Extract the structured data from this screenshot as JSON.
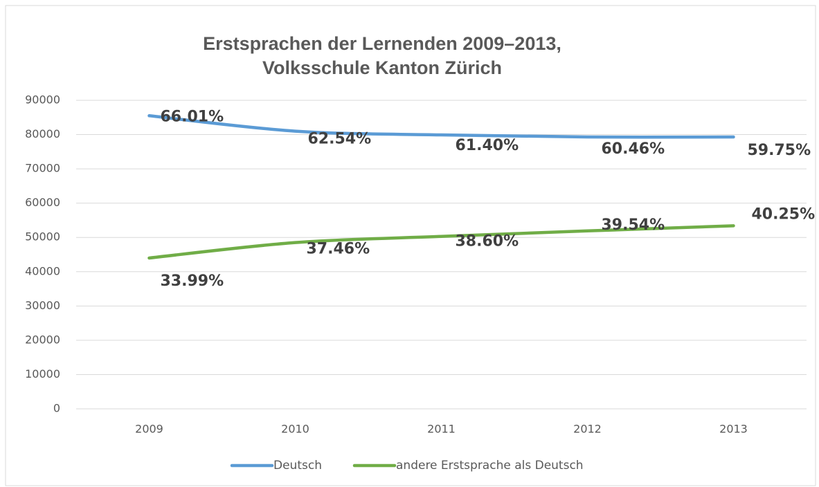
{
  "chart_data": {
    "type": "line",
    "title": [
      "Erstsprachen der Lernenden 2009–2013,",
      "Volksschule Kanton Zürich"
    ],
    "categories": [
      "2009",
      "2010",
      "2011",
      "2012",
      "2013"
    ],
    "series": [
      {
        "name": "Deutsch",
        "color": "#5b9bd5",
        "values": [
          85500,
          81000,
          79900,
          79300,
          79300
        ],
        "share_labels": [
          "66.01%",
          "62.54%",
          "61.40%",
          "60.46%",
          "59.75%"
        ]
      },
      {
        "name": "andere Erstsprache als Deutsch",
        "color": "#70ad47",
        "values": [
          44000,
          48500,
          50300,
          51900,
          53400
        ],
        "share_labels": [
          "33.99%",
          "37.46%",
          "38.60%",
          "39.54%",
          "40.25%"
        ]
      }
    ],
    "ylim": [
      0,
      90000
    ],
    "yticks": [
      0,
      10000,
      20000,
      30000,
      40000,
      50000,
      60000,
      70000,
      80000,
      90000
    ],
    "grid": true,
    "legend": "bottom"
  }
}
